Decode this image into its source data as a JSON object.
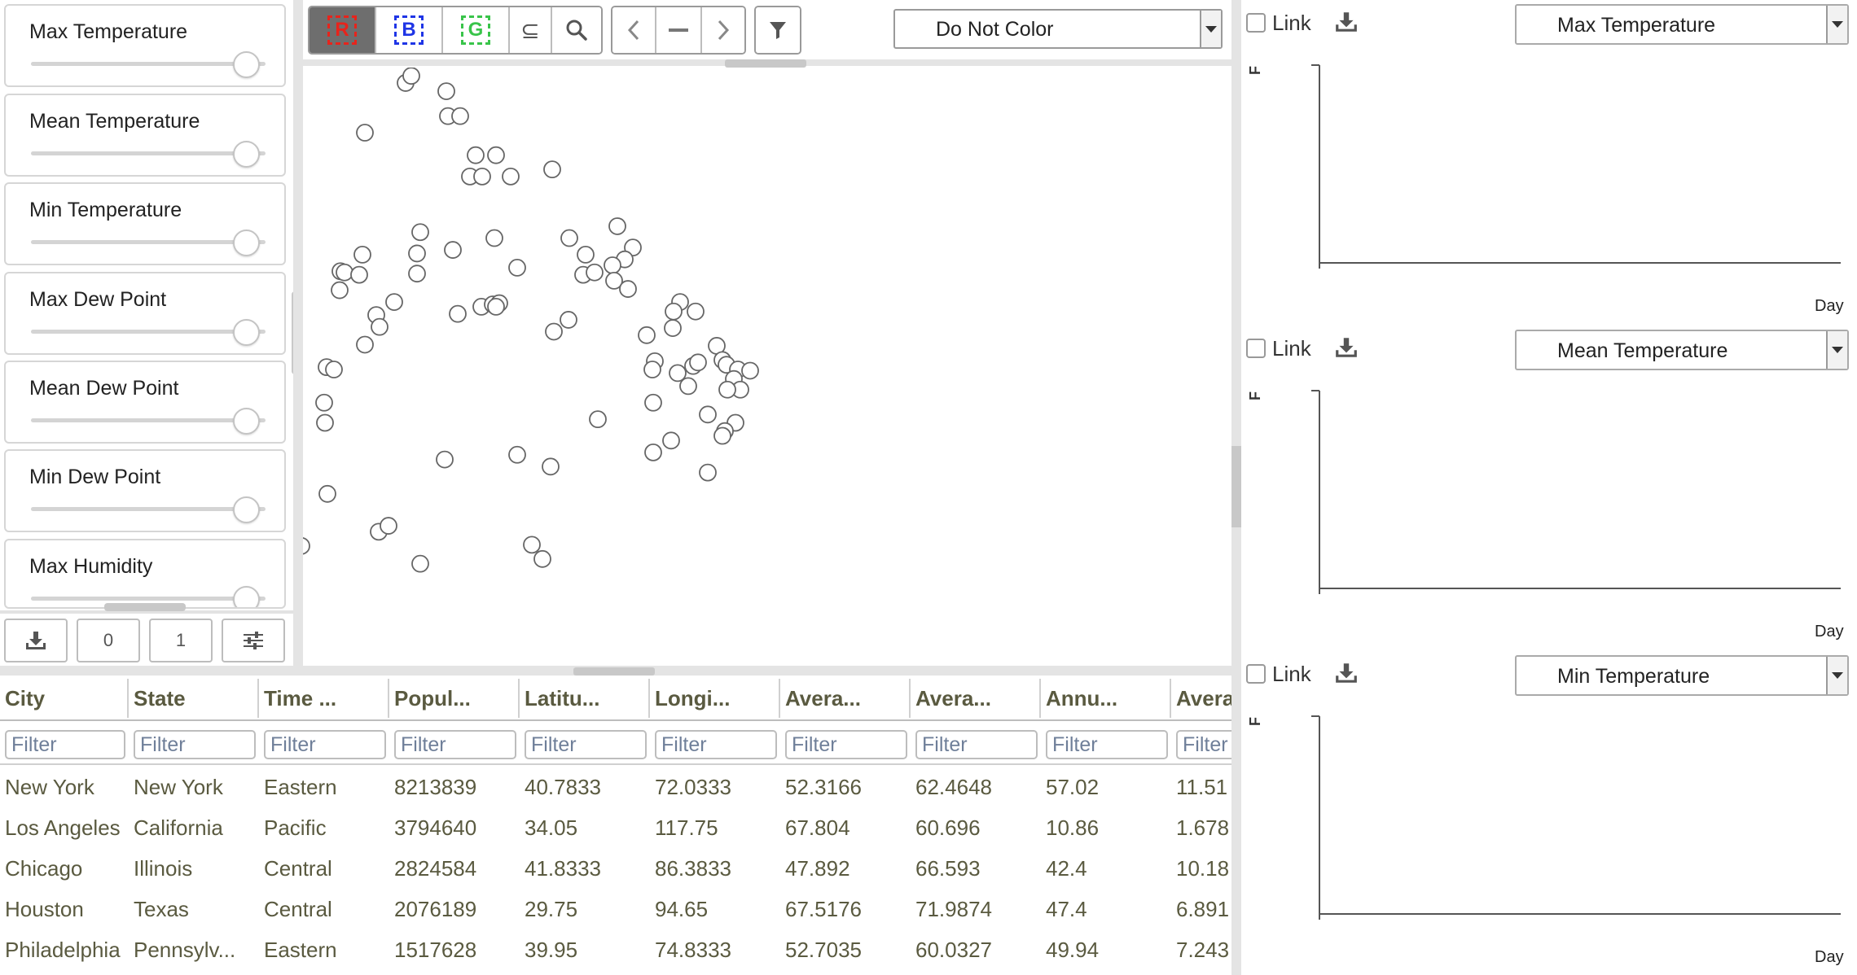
{
  "sliders": [
    {
      "label": "Max Temperature"
    },
    {
      "label": "Mean Temperature"
    },
    {
      "label": "Min Temperature"
    },
    {
      "label": "Max Dew Point"
    },
    {
      "label": "Mean Dew Point"
    },
    {
      "label": "Min Dew Point"
    },
    {
      "label": "Max Humidity"
    }
  ],
  "controls": {
    "download_icon": "download-icon",
    "btn_zero": "0",
    "btn_one": "1",
    "settings_icon": "sliders-icon"
  },
  "toolbar": {
    "brush_r": "R",
    "brush_b": "B",
    "brush_g": "G",
    "subset_symbol": "⊆",
    "color_select": "Do Not Color",
    "colors": {
      "red": "#e8231b",
      "blue": "#1f35e6",
      "green": "#39c44a"
    }
  },
  "scatter": {
    "points": [
      [
        498,
        96
      ],
      [
        505,
        90
      ],
      [
        548,
        103
      ],
      [
        550,
        124
      ],
      [
        565,
        124
      ],
      [
        448,
        138
      ],
      [
        584,
        157
      ],
      [
        609,
        157
      ],
      [
        577,
        175
      ],
      [
        592,
        175
      ],
      [
        627,
        175
      ],
      [
        678,
        169
      ],
      [
        516,
        222
      ],
      [
        607,
        227
      ],
      [
        699,
        227
      ],
      [
        758,
        217
      ],
      [
        777,
        235
      ],
      [
        445,
        241
      ],
      [
        512,
        240
      ],
      [
        556,
        237
      ],
      [
        719,
        241
      ],
      [
        767,
        245
      ],
      [
        418,
        255
      ],
      [
        423,
        256
      ],
      [
        441,
        258
      ],
      [
        512,
        257
      ],
      [
        635,
        252
      ],
      [
        716,
        258
      ],
      [
        730,
        256
      ],
      [
        752,
        250
      ],
      [
        754,
        263
      ],
      [
        771,
        270
      ],
      [
        417,
        271
      ],
      [
        484,
        281
      ],
      [
        462,
        292
      ],
      [
        466,
        302
      ],
      [
        562,
        291
      ],
      [
        591,
        285
      ],
      [
        605,
        283
      ],
      [
        613,
        282
      ],
      [
        609,
        285
      ],
      [
        698,
        296
      ],
      [
        680,
        306
      ],
      [
        835,
        281
      ],
      [
        854,
        289
      ],
      [
        827,
        289
      ],
      [
        826,
        303
      ],
      [
        794,
        309
      ],
      [
        448,
        317
      ],
      [
        401,
        336
      ],
      [
        410,
        338
      ],
      [
        804,
        331
      ],
      [
        801,
        338
      ],
      [
        832,
        341
      ],
      [
        851,
        335
      ],
      [
        857,
        332
      ],
      [
        845,
        352
      ],
      [
        880,
        318
      ],
      [
        887,
        330
      ],
      [
        892,
        334
      ],
      [
        906,
        338
      ],
      [
        921,
        339
      ],
      [
        901,
        346
      ],
      [
        909,
        355
      ],
      [
        893,
        355
      ],
      [
        398,
        366
      ],
      [
        399,
        383
      ],
      [
        734,
        380
      ],
      [
        802,
        366
      ],
      [
        869,
        376
      ],
      [
        903,
        383
      ],
      [
        890,
        390
      ],
      [
        887,
        394
      ],
      [
        329,
        427
      ],
      [
        348,
        434
      ],
      [
        327,
        442
      ],
      [
        402,
        443
      ],
      [
        546,
        414
      ],
      [
        635,
        410
      ],
      [
        676,
        420
      ],
      [
        802,
        408
      ],
      [
        824,
        398
      ],
      [
        869,
        425
      ],
      [
        273,
        450
      ],
      [
        465,
        475
      ],
      [
        477,
        470
      ],
      [
        370,
        487
      ],
      [
        516,
        502
      ],
      [
        653,
        486
      ],
      [
        666,
        498
      ],
      [
        356,
        515
      ]
    ]
  },
  "table": {
    "filter_placeholder": "Filter",
    "columns": [
      "City",
      "State",
      "Time ...",
      "Popul...",
      "Latitu...",
      "Longi...",
      "Avera...",
      "Avera...",
      "Annu...",
      "Avera"
    ],
    "rows": [
      [
        "New York",
        "New York",
        "Eastern",
        "8213839",
        "40.7833",
        "72.0333",
        "52.3166",
        "62.4648",
        "57.02",
        "11.51"
      ],
      [
        "Los Angeles",
        "California",
        "Pacific",
        "3794640",
        "34.05",
        "117.75",
        "67.804",
        "60.696",
        "10.86",
        "1.678"
      ],
      [
        "Chicago",
        "Illinois",
        "Central",
        "2824584",
        "41.8333",
        "86.3833",
        "47.892",
        "66.593",
        "42.4",
        "10.18"
      ],
      [
        "Houston",
        "Texas",
        "Central",
        "2076189",
        "29.75",
        "94.65",
        "67.5176",
        "71.9874",
        "47.4",
        "6.891"
      ],
      [
        "Philadelphia",
        "Pennsylv...",
        "Eastern",
        "1517628",
        "39.95",
        "74.8333",
        "52.7035",
        "60.0327",
        "49.94",
        "7.243"
      ]
    ]
  },
  "panels": [
    {
      "link_label": "Link",
      "select": "Max Temperature",
      "y_label": "F",
      "x_label": "Day"
    },
    {
      "link_label": "Link",
      "select": "Mean Temperature",
      "y_label": "F",
      "x_label": "Day"
    },
    {
      "link_label": "Link",
      "select": "Min Temperature",
      "y_label": "F",
      "x_label": "Day"
    }
  ]
}
